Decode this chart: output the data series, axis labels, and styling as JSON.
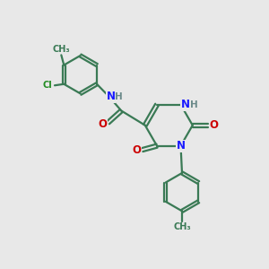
{
  "bg_color": "#e8e8e8",
  "bond_color": "#3a7a55",
  "bond_width": 1.6,
  "atom_colors": {
    "N": "#1a1aff",
    "O": "#cc0000",
    "Cl": "#228B22",
    "C": "#3a7a55",
    "H": "#6b8a8a"
  },
  "font_size_atom": 8.5,
  "font_size_small": 7.0,
  "font_size_h": 7.5
}
